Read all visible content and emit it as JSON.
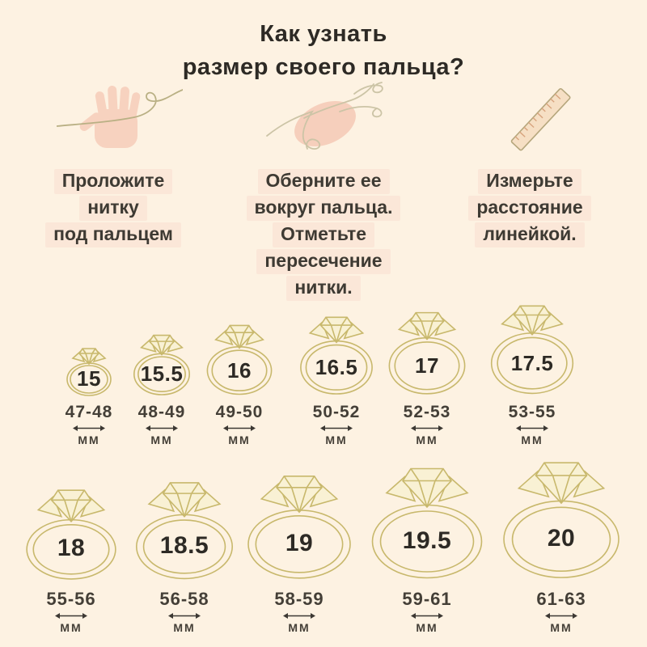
{
  "title": {
    "line1": "Как узнать",
    "line2": "размер своего пальца?"
  },
  "steps": [
    {
      "icon": "hand-thread-icon",
      "lines": [
        "Проложите",
        "нитку",
        "под пальцем"
      ]
    },
    {
      "icon": "finger-thread-icon",
      "lines": [
        "Оберните ее",
        "вокруг пальца.",
        "Отметьте",
        "пересечение",
        "нитки."
      ]
    },
    {
      "icon": "ruler-icon",
      "lines": [
        "Измерьте",
        "расстояние",
        "линейкой."
      ]
    }
  ],
  "ring_chart": {
    "type": "table",
    "description": "Соответствие размера кольца длине окружности пальца",
    "row1": [
      {
        "size": "15",
        "range": "47-48",
        "unit": "ММ"
      },
      {
        "size": "15.5",
        "range": "48-49",
        "unit": "ММ"
      },
      {
        "size": "16",
        "range": "49-50",
        "unit": "ММ"
      },
      {
        "size": "16.5",
        "range": "50-52",
        "unit": "ММ"
      },
      {
        "size": "17",
        "range": "52-53",
        "unit": "ММ"
      },
      {
        "size": "17.5",
        "range": "53-55",
        "unit": "ММ"
      }
    ],
    "row2": [
      {
        "size": "18",
        "range": "55-56",
        "unit": "ММ"
      },
      {
        "size": "18.5",
        "range": "56-58",
        "unit": "ММ"
      },
      {
        "size": "19",
        "range": "58-59",
        "unit": "ММ"
      },
      {
        "size": "19.5",
        "range": "59-61",
        "unit": "ММ"
      },
      {
        "size": "20",
        "range": "61-63",
        "unit": "ММ"
      }
    ]
  },
  "colors": {
    "background": "#fdf2e2",
    "text": "#2d2a25",
    "highlight": "#fbe7d8",
    "ring_gold": "#c8b86c",
    "icon_pink": "#f7d2bf",
    "thread": "#b9b084"
  }
}
